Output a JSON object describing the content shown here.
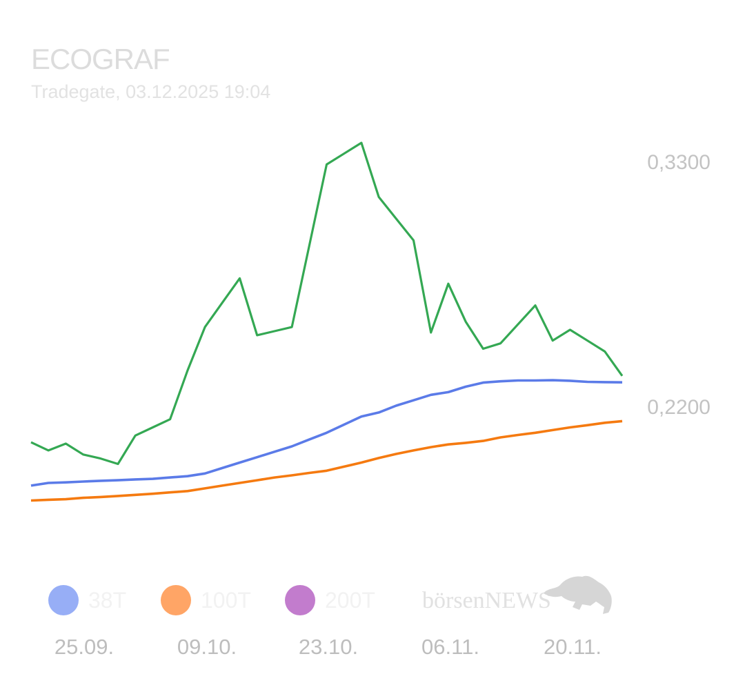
{
  "header": {
    "title": "ECOGRAF",
    "subtitle": "Tradegate, 03.12.2025 19:04"
  },
  "logo": {
    "text": "börsenNEWS"
  },
  "colors": {
    "price": "#34a853",
    "ma38": "#5b7be8",
    "ma100": "#f57a10",
    "ma200": "#c27ccd",
    "legend_ma38": "#97aef6",
    "legend_ma100": "#ffa566",
    "legend_ma200": "#c27ccd"
  },
  "chart_data": {
    "type": "line",
    "y_tick_labels": [
      "0,3300",
      "0,2200"
    ],
    "y_ticks": [
      0.33,
      0.22
    ],
    "ylim": [
      0.174,
      0.37
    ],
    "x_tick_labels": [
      "25.09.",
      "09.10.",
      "23.10.",
      "06.11.",
      "20.11."
    ],
    "x_tick_index": [
      3,
      10,
      17,
      24,
      31
    ],
    "n_points": 35,
    "grid": false,
    "legend": [
      {
        "name": "38T",
        "color": "#97aef6"
      },
      {
        "name": "100T",
        "color": "#ffa566"
      },
      {
        "name": "200T",
        "color": "#c27ccd"
      }
    ],
    "legend_position": "bottom",
    "series": [
      {
        "role": "price",
        "color": "#34a853",
        "values": [
          0.217,
          0.214,
          0.2165,
          0.2125,
          0.211,
          0.209,
          0.2195,
          0.2225,
          0.2255,
          0.2435,
          0.2595,
          0.2685,
          0.2775,
          0.2565,
          0.258,
          0.2595,
          0.2895,
          0.3195,
          0.3235,
          0.3275,
          0.3075,
          0.2995,
          0.2915,
          0.2575,
          0.2755,
          0.2615,
          0.2515,
          0.2535,
          0.2605,
          0.2675,
          0.2545,
          0.2585,
          0.2545,
          0.2505,
          0.2415
        ]
      },
      {
        "role": "ma38",
        "color": "#5b7be8",
        "values": [
          0.201,
          0.202,
          0.2022,
          0.2025,
          0.2028,
          0.203,
          0.2033,
          0.2035,
          0.204,
          0.2045,
          0.2055,
          0.2075,
          0.2095,
          0.2115,
          0.2135,
          0.2155,
          0.218,
          0.2205,
          0.2235,
          0.2265,
          0.228,
          0.2305,
          0.2325,
          0.2345,
          0.2355,
          0.2375,
          0.239,
          0.2395,
          0.2398,
          0.2398,
          0.2399,
          0.2397,
          0.2393,
          0.2392,
          0.2391
        ]
      },
      {
        "role": "ma100",
        "color": "#f57a10",
        "values": [
          0.1955,
          0.1958,
          0.196,
          0.1965,
          0.1968,
          0.1972,
          0.1976,
          0.198,
          0.1985,
          0.199,
          0.2,
          0.201,
          0.202,
          0.203,
          0.204,
          0.2048,
          0.2057,
          0.2065,
          0.208,
          0.2095,
          0.2112,
          0.2127,
          0.214,
          0.2152,
          0.2162,
          0.2168,
          0.2175,
          0.2188,
          0.2197,
          0.2205,
          0.2215,
          0.2225,
          0.2233,
          0.2242,
          0.2248
        ]
      }
    ]
  }
}
